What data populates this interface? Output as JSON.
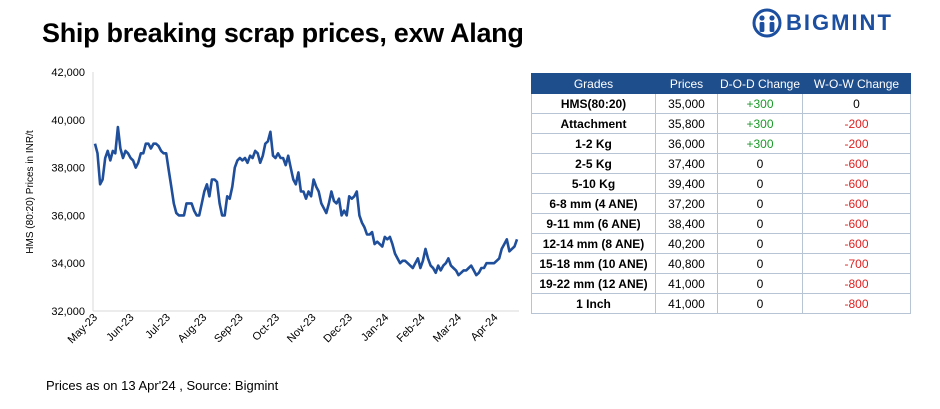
{
  "title": "Ship breaking scrap prices, exw Alang",
  "logo_text": "BIGMINT",
  "footnote": "Prices as on 13 Apr'24 , Source:  Bigmint",
  "colors": {
    "line": "#1f4e9a",
    "header_bg": "#1f4e8c",
    "positive": "#1a9a28",
    "negative": "#e02020",
    "brand": "#1c4fa0"
  },
  "chart_data": {
    "type": "line",
    "ylabel": "HMS (80:20) Prices in INR/t",
    "xlabel": "",
    "ylim": [
      32000,
      42000
    ],
    "yticks": [
      "32,000",
      "34,000",
      "36,000",
      "38,000",
      "40,000",
      "42,000"
    ],
    "xticks": [
      "May-23",
      "Jun-23",
      "Jul-23",
      "Aug-23",
      "Sep-23",
      "Oct-23",
      "Nov-23",
      "Dec-23",
      "Jan-24",
      "Feb-24",
      "Mar-24",
      "Apr-24"
    ],
    "grid": false,
    "series": [
      {
        "values": [
          39000,
          38600,
          37300,
          37500,
          38400,
          38700,
          38300,
          38700,
          38600,
          39700,
          38800,
          38400,
          38700,
          38600,
          38400,
          38300,
          38000,
          38200,
          38600,
          38600,
          39000,
          39000,
          38800,
          39000,
          39000,
          38900,
          38700,
          38600,
          38600,
          37900,
          37200,
          36500,
          36100,
          36000,
          36000,
          36000,
          36500,
          36500,
          36500,
          36200,
          36000,
          36000,
          36500,
          37000,
          37300,
          36800,
          37500,
          37500,
          37400,
          36500,
          36000,
          36000,
          36800,
          36700,
          37200,
          38000,
          38300,
          38400,
          38300,
          38400,
          38200,
          38500,
          38400,
          38700,
          38600,
          38200,
          38500,
          39000,
          39100,
          39500,
          38500,
          38400,
          38600,
          38400,
          38400,
          38100,
          38500,
          38000,
          37500,
          37300,
          37800,
          37000,
          37000,
          36700,
          37000,
          36800,
          37500,
          37200,
          37000,
          36500,
          36300,
          36100,
          36500,
          37000,
          36600,
          36500,
          36700,
          36000,
          36200,
          36000,
          36800,
          36700,
          36800,
          37000,
          36000,
          35700,
          35500,
          35200,
          35200,
          35300,
          34800,
          34900,
          34800,
          34700,
          35100,
          35000,
          35100,
          34800,
          34400,
          34200,
          34000,
          34100,
          34100,
          34000,
          33900,
          33800,
          34000,
          34200,
          33800,
          34100,
          34600,
          34200,
          33900,
          33800,
          33600,
          33900,
          33700,
          33900,
          34000,
          34200,
          33900,
          33800,
          33700,
          33500,
          33600,
          33700,
          33700,
          33800,
          33900,
          33700,
          33500,
          33600,
          33800,
          33800,
          34000,
          34000,
          34000,
          34000,
          34100,
          34200,
          34600,
          34800,
          35000,
          34500,
          34600,
          34700,
          35000
        ]
      }
    ]
  },
  "table": {
    "headers": [
      "Grades",
      "Prices",
      "D-O-D Change",
      "W-O-W Change"
    ],
    "rows": [
      {
        "grade": "HMS(80:20)",
        "price": "35,000",
        "dod": "+300",
        "wow": "0"
      },
      {
        "grade": "Attachment",
        "price": "35,800",
        "dod": "+300",
        "wow": "-200"
      },
      {
        "grade": "1-2 Kg",
        "price": "36,000",
        "dod": "+300",
        "wow": "-200"
      },
      {
        "grade": "2-5 Kg",
        "price": "37,400",
        "dod": "0",
        "wow": "-600"
      },
      {
        "grade": "5-10 Kg",
        "price": "39,400",
        "dod": "0",
        "wow": "-600"
      },
      {
        "grade": "6-8 mm (4 ANE)",
        "price": "37,200",
        "dod": "0",
        "wow": "-600"
      },
      {
        "grade": "9-11 mm (6 ANE)",
        "price": "38,400",
        "dod": "0",
        "wow": "-600"
      },
      {
        "grade": "12-14 mm (8 ANE)",
        "price": "40,200",
        "dod": "0",
        "wow": "-600"
      },
      {
        "grade": "15-18 mm (10 ANE)",
        "price": "40,800",
        "dod": "0",
        "wow": "-700"
      },
      {
        "grade": "19-22 mm (12 ANE)",
        "price": "41,000",
        "dod": "0",
        "wow": "-800"
      },
      {
        "grade": "1 Inch",
        "price": "41,000",
        "dod": "0",
        "wow": "-800"
      }
    ]
  }
}
